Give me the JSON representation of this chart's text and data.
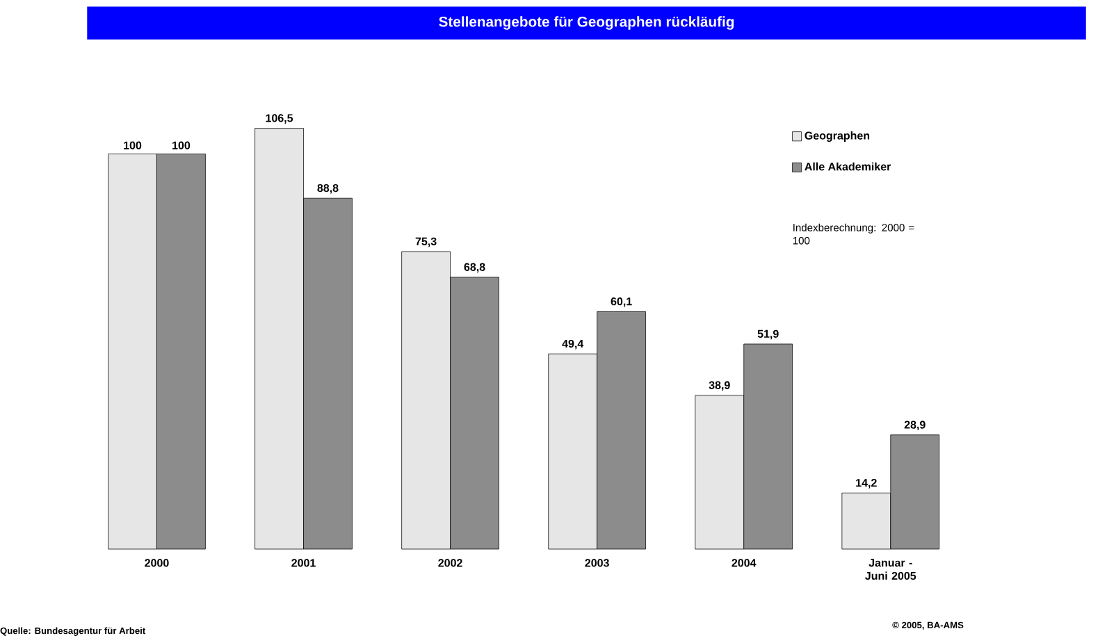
{
  "chart_data": {
    "type": "bar",
    "title": "Stellenangebote für Geographen rückläufig",
    "categories": [
      "2000",
      "2001",
      "2002",
      "2003",
      "2004",
      "Januar - Juni 2005"
    ],
    "series": [
      {
        "name": "Geographen",
        "color": "#e6e6e6",
        "values": [
          100,
          106.5,
          75.3,
          49.4,
          38.9,
          14.2
        ],
        "value_labels": [
          "100",
          "106,5",
          "75,3",
          "49,4",
          "38,9",
          "14,2"
        ]
      },
      {
        "name": "Alle Akademiker",
        "color": "#8c8c8c",
        "values": [
          100,
          88.8,
          68.8,
          60.1,
          51.9,
          28.9
        ],
        "value_labels": [
          "100",
          "88,8",
          "68,8",
          "60,1",
          "51,9",
          "28,9"
        ]
      }
    ],
    "legend": "top right",
    "annotations": [
      "Indexberechnung: 2000 = 100",
      "Quelle: Bundesagentur für Arbeit",
      "© 2005, BA-AMS"
    ]
  }
}
